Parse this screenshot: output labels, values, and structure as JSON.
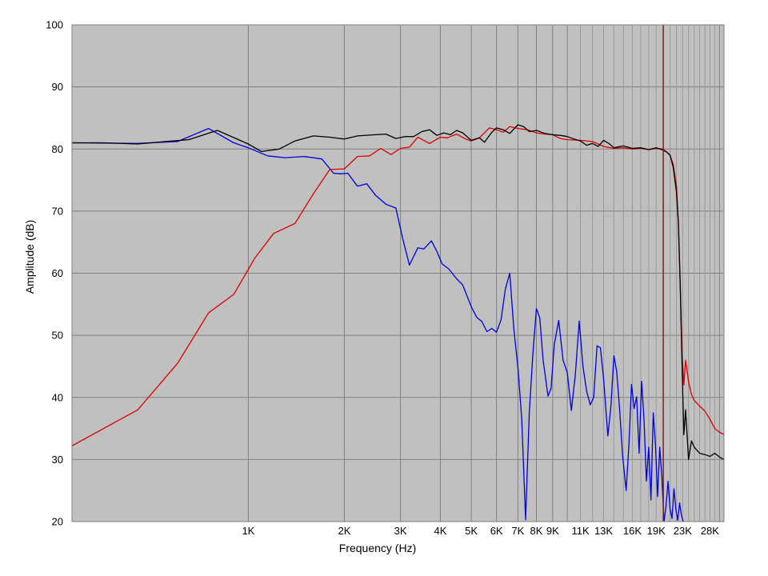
{
  "chart_data": {
    "type": "line",
    "title": "",
    "xlabel": "Frequency (Hz)",
    "ylabel": "Amplitude (dB)",
    "x_scale": "log",
    "xlim": [
      280,
      31000
    ],
    "ylim": [
      20,
      100
    ],
    "grid": true,
    "legend": "none",
    "colors": {
      "plot_background": "#c0c0c0",
      "grid_major": "#808080",
      "grid_minor": "#9a9a9a",
      "marker_line": "#8b1a1a"
    },
    "y_ticks": [
      {
        "value": 20,
        "label": "20"
      },
      {
        "value": 30,
        "label": "30"
      },
      {
        "value": 40,
        "label": "40"
      },
      {
        "value": 50,
        "label": "50"
      },
      {
        "value": 60,
        "label": "60"
      },
      {
        "value": 70,
        "label": "70"
      },
      {
        "value": 80,
        "label": "80"
      },
      {
        "value": 90,
        "label": "90"
      },
      {
        "value": 100,
        "label": "100"
      }
    ],
    "x_ticks": [
      {
        "value": 1000,
        "label": "1K"
      },
      {
        "value": 2000,
        "label": "2K"
      },
      {
        "value": 3000,
        "label": "3K"
      },
      {
        "value": 4000,
        "label": "4K"
      },
      {
        "value": 5000,
        "label": "5K"
      },
      {
        "value": 6000,
        "label": "6K"
      },
      {
        "value": 7000,
        "label": "7K"
      },
      {
        "value": 8000,
        "label": "8K"
      },
      {
        "value": 9000,
        "label": "9K"
      },
      {
        "value": 11000,
        "label": "11K"
      },
      {
        "value": 13000,
        "label": "13K"
      },
      {
        "value": 16000,
        "label": "16K"
      },
      {
        "value": 19000,
        "label": "19K"
      },
      {
        "value": 23000,
        "label": "23K"
      },
      {
        "value": 28000,
        "label": "28K"
      }
    ],
    "major_gridlines_x": [
      1000,
      2000,
      3000,
      4000,
      5000,
      6000,
      7000,
      8000,
      9000,
      10000,
      20000,
      30000
    ],
    "minor_gridlines_x": [
      11000,
      12000,
      13000,
      14000,
      15000,
      16000,
      17000,
      18000,
      19000,
      21000,
      22000,
      23000,
      24000,
      25000,
      26000,
      27000,
      28000,
      29000
    ],
    "marker_frequency": 20000,
    "series": [
      {
        "color": "#000000",
        "x": [
          280,
          350,
          450,
          550,
          650,
          800,
          1000,
          1100,
          1250,
          1400,
          1600,
          1800,
          2000,
          2200,
          2500,
          2700,
          2900,
          3100,
          3300,
          3500,
          3700,
          3900,
          4100,
          4300,
          4500,
          4700,
          5000,
          5300,
          5500,
          5800,
          6000,
          6300,
          6600,
          7000,
          7300,
          7600,
          8000,
          8500,
          9000,
          9500,
          10000,
          10500,
          11000,
          11500,
          12000,
          12500,
          13000,
          13500,
          14000,
          15000,
          16000,
          17000,
          18000,
          19000,
          20000,
          20500,
          21000,
          21500,
          22000,
          22300,
          22600,
          22900,
          23200,
          23500,
          24000,
          24500,
          25000,
          26000,
          27000,
          28000,
          29000,
          30000,
          31000
        ],
        "y": [
          81,
          81,
          80.8,
          81.2,
          81.5,
          83,
          80.8,
          79.6,
          80,
          81.3,
          82.1,
          81.9,
          81.6,
          82.1,
          82.3,
          82.4,
          81.7,
          82,
          82,
          82.8,
          83.1,
          82.2,
          82.6,
          82.3,
          83,
          82.6,
          81.4,
          81.8,
          81.1,
          82.7,
          83.4,
          83.1,
          82.5,
          83.9,
          83.6,
          82.8,
          83,
          82.5,
          82.3,
          82.2,
          82,
          81.6,
          81.3,
          80.6,
          80.9,
          80.4,
          81.4,
          80.9,
          80.2,
          80.5,
          80.1,
          80.2,
          79.9,
          80.2,
          79.8,
          79.5,
          79,
          77,
          73,
          68,
          58,
          45,
          34,
          38,
          30,
          33,
          32,
          31,
          30.8,
          30.5,
          31,
          30.4,
          30
        ]
      },
      {
        "color": "#dd0000",
        "x": [
          280,
          450,
          600,
          750,
          900,
          1050,
          1200,
          1400,
          1600,
          1800,
          2000,
          2200,
          2400,
          2600,
          2800,
          3000,
          3200,
          3400,
          3700,
          4000,
          4200,
          4500,
          4800,
          5000,
          5300,
          5700,
          6000,
          6300,
          6600,
          7000,
          7500,
          8000,
          8500,
          9000,
          9500,
          10000,
          11000,
          12000,
          13000,
          14000,
          15000,
          16000,
          17000,
          18000,
          19000,
          20000,
          20500,
          21000,
          21500,
          22000,
          22300,
          22600,
          22900,
          23200,
          23500,
          24000,
          24500,
          25000,
          26000,
          27000,
          28000,
          29000,
          30000,
          31000
        ],
        "y": [
          32.2,
          38,
          45.5,
          53.6,
          56.6,
          62.5,
          66.4,
          68,
          72.8,
          76.7,
          76.8,
          78.8,
          78.9,
          80.1,
          79.1,
          80.1,
          80.3,
          81.9,
          80.9,
          81.9,
          81.8,
          82.4,
          81.6,
          81.3,
          81.8,
          83.4,
          83.1,
          82.7,
          83.6,
          83.3,
          83.1,
          82.6,
          82.4,
          82.3,
          81.7,
          81.5,
          81.4,
          81.2,
          80.4,
          80.1,
          80.2,
          80,
          80.1,
          79.9,
          80.1,
          80,
          79.5,
          79,
          77.5,
          74,
          68,
          58,
          47,
          42,
          46,
          42.5,
          40.5,
          39.5,
          38.6,
          37.8,
          36.5,
          35,
          34.4,
          34
        ]
      },
      {
        "color": "#0000dd",
        "x": [
          280,
          450,
          600,
          750,
          900,
          1000,
          1150,
          1300,
          1500,
          1700,
          1850,
          1950,
          2050,
          2200,
          2350,
          2500,
          2700,
          2900,
          3050,
          3200,
          3400,
          3550,
          3750,
          3900,
          4050,
          4250,
          4500,
          4700,
          5000,
          5200,
          5400,
          5600,
          5800,
          6000,
          6200,
          6400,
          6600,
          6800,
          7000,
          7200,
          7400,
          7600,
          7800,
          8000,
          8200,
          8400,
          8700,
          8900,
          9100,
          9400,
          9700,
          10000,
          10300,
          10600,
          10900,
          11200,
          11500,
          11800,
          12100,
          12400,
          12700,
          13000,
          13400,
          13700,
          14000,
          14300,
          14600,
          14900,
          15300,
          15600,
          15900,
          16200,
          16500,
          16800,
          17100,
          17400,
          17700,
          18000,
          18300,
          18600,
          18900,
          19200,
          19500,
          19800,
          20100,
          20400,
          20700,
          21000,
          21300,
          21600,
          21900,
          22200,
          22500,
          22800,
          23100
        ],
        "y": [
          81,
          80.9,
          81.2,
          83.3,
          81,
          80.2,
          78.9,
          78.6,
          78.8,
          78.4,
          76.1,
          76,
          76.1,
          74,
          74.4,
          72.6,
          71.1,
          70.5,
          65.5,
          61.3,
          64.1,
          63.9,
          65.2,
          63.5,
          61.5,
          60.7,
          59.1,
          58.1,
          54.6,
          52.9,
          52.2,
          50.6,
          51.1,
          50.5,
          52.5,
          57.5,
          60,
          51,
          45,
          36.5,
          20.3,
          37.5,
          47,
          54.3,
          52.8,
          46,
          40.2,
          41.5,
          48.5,
          52.4,
          46,
          44,
          37.9,
          43.7,
          52.3,
          45,
          41,
          38.8,
          40,
          48.3,
          48,
          43,
          33.8,
          38.5,
          46.7,
          44,
          38,
          30.8,
          25,
          32.3,
          42.1,
          38.2,
          40.1,
          31,
          42.6,
          36.5,
          26.5,
          32,
          23.5,
          37.5,
          32.5,
          24,
          32,
          27,
          20,
          22.5,
          26.5,
          22,
          20.5,
          25.3,
          22,
          20.2,
          23,
          21,
          20
        ]
      }
    ]
  }
}
